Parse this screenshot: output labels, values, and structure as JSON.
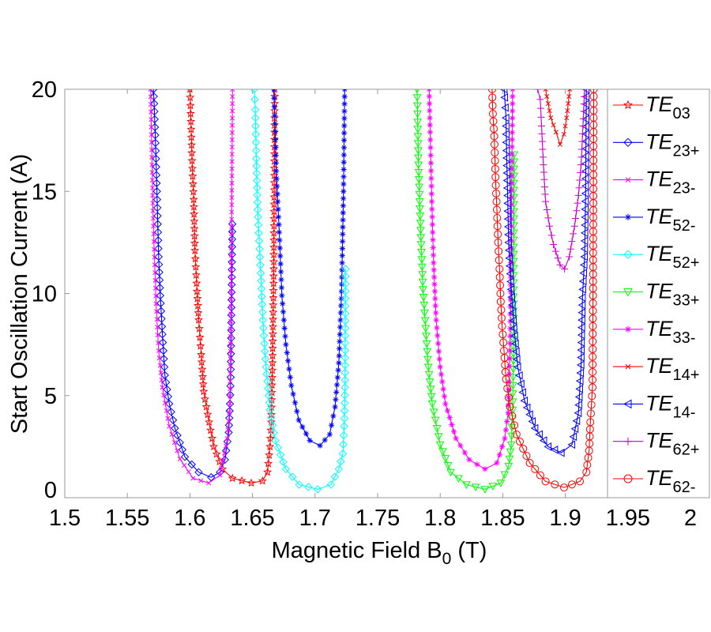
{
  "chart_data": {
    "type": "line",
    "title": "",
    "xlabel": {
      "main": "Magnetic Field B",
      "sub": "0",
      "unit": " (T)"
    },
    "ylabel": "Start Oscillation Current (A)",
    "xlim": [
      1.5,
      2.0
    ],
    "ylim": [
      0,
      20
    ],
    "xticks": [
      "1.5",
      "1.55",
      "1.6",
      "1.65",
      "1.7",
      "1.75",
      "1.8",
      "1.85",
      "1.9",
      "1.95",
      "2"
    ],
    "yticks": [
      "0",
      "5",
      "10",
      "15",
      "20"
    ],
    "grid": false,
    "legend_position": "right",
    "series": [
      {
        "name_main": "TE",
        "name_sub": "03",
        "color": "#ff0000",
        "marker": "star",
        "points": [
          [
            1.6,
            20
          ],
          [
            1.6006,
            18.8
          ],
          [
            1.6017,
            16.5
          ],
          [
            1.603,
            14.6
          ],
          [
            1.604,
            12.1
          ],
          [
            1.6057,
            10.1
          ],
          [
            1.607,
            8.7
          ],
          [
            1.609,
            7.0
          ],
          [
            1.611,
            5.2
          ],
          [
            1.6153,
            3.7
          ],
          [
            1.619,
            2.5
          ],
          [
            1.626,
            1.4
          ],
          [
            1.634,
            0.95
          ],
          [
            1.649,
            0.72
          ],
          [
            1.658,
            0.82
          ],
          [
            1.662,
            1.25
          ],
          [
            1.664,
            2.5
          ],
          [
            1.665,
            3.7
          ],
          [
            1.666,
            6.6
          ],
          [
            1.667,
            11.2
          ],
          [
            1.6678,
            20
          ]
        ]
      },
      {
        "name_main": "TE",
        "name_sub": "23+",
        "color": "#0000ff",
        "marker": "diamond",
        "points": [
          [
            1.5708,
            20
          ],
          [
            1.5714,
            19.3
          ],
          [
            1.5729,
            16.6
          ],
          [
            1.574,
            14.2
          ],
          [
            1.575,
            11.8
          ],
          [
            1.5763,
            9.9
          ],
          [
            1.578,
            8.0
          ],
          [
            1.58,
            6.0
          ],
          [
            1.5835,
            4.6
          ],
          [
            1.588,
            3.4
          ],
          [
            1.596,
            2.0
          ],
          [
            1.607,
            1.25
          ],
          [
            1.617,
            1.0
          ],
          [
            1.624,
            1.25
          ],
          [
            1.628,
            1.86
          ],
          [
            1.631,
            3.2
          ],
          [
            1.632,
            4.6
          ],
          [
            1.6326,
            5.9
          ],
          [
            1.633,
            8.2
          ],
          [
            1.6339,
            13.4
          ]
        ]
      },
      {
        "name_main": "TE",
        "name_sub": "23-",
        "color": "#ff00ff",
        "marker": "x",
        "points": [
          [
            1.5686,
            20
          ],
          [
            1.5697,
            16.3
          ],
          [
            1.5708,
            13.3
          ],
          [
            1.573,
            9.5
          ],
          [
            1.575,
            7.2
          ],
          [
            1.578,
            5.4
          ],
          [
            1.5835,
            3.5
          ],
          [
            1.592,
            1.9
          ],
          [
            1.6025,
            0.95
          ],
          [
            1.615,
            0.72
          ],
          [
            1.624,
            1.1
          ],
          [
            1.63,
            2.9
          ],
          [
            1.632,
            4.6
          ],
          [
            1.633,
            10.1
          ],
          [
            1.634,
            20
          ]
        ]
      },
      {
        "name_main": "TE",
        "name_sub": "52-",
        "color": "#0000ff",
        "marker": "asterisk",
        "points": [
          [
            1.667,
            20
          ],
          [
            1.6678,
            18.7
          ],
          [
            1.669,
            16.0
          ],
          [
            1.6714,
            13.0
          ],
          [
            1.6735,
            9.9
          ],
          [
            1.6767,
            7.5
          ],
          [
            1.681,
            5.5
          ],
          [
            1.687,
            3.8
          ],
          [
            1.6958,
            2.8
          ],
          [
            1.704,
            2.55
          ],
          [
            1.7117,
            3.1
          ],
          [
            1.716,
            4.45
          ],
          [
            1.719,
            6.6
          ],
          [
            1.7212,
            10.1
          ],
          [
            1.7227,
            15.0
          ],
          [
            1.7237,
            20
          ]
        ]
      },
      {
        "name_main": "TE",
        "name_sub": "52+",
        "color": "#00ffff",
        "marker": "diamond",
        "points": [
          [
            1.6513,
            20
          ],
          [
            1.6523,
            19.0
          ],
          [
            1.653,
            16.6
          ],
          [
            1.6544,
            13.75
          ],
          [
            1.6566,
            11.0
          ],
          [
            1.6583,
            8.7
          ],
          [
            1.6608,
            6.4
          ],
          [
            1.664,
            4.3
          ],
          [
            1.6682,
            2.8
          ],
          [
            1.6767,
            1.4
          ],
          [
            1.6873,
            0.64
          ],
          [
            1.702,
            0.41
          ],
          [
            1.7127,
            0.64
          ],
          [
            1.719,
            1.4
          ],
          [
            1.7222,
            2.16
          ],
          [
            1.7233,
            3.5
          ],
          [
            1.7239,
            5.4
          ],
          [
            1.7244,
            11.2
          ]
        ]
      },
      {
        "name_main": "TE",
        "name_sub": "33+",
        "color": "#00ff00",
        "marker": "triangle-down",
        "points": [
          [
            1.7815,
            20
          ],
          [
            1.782,
            18.4
          ],
          [
            1.7827,
            16.3
          ],
          [
            1.7836,
            14.5
          ],
          [
            1.7848,
            12.4
          ],
          [
            1.7863,
            10.2
          ],
          [
            1.7884,
            8.3
          ],
          [
            1.7905,
            6.4
          ],
          [
            1.7937,
            4.6
          ],
          [
            1.8,
            2.6
          ],
          [
            1.8084,
            1.25
          ],
          [
            1.821,
            0.64
          ],
          [
            1.8358,
            0.41
          ],
          [
            1.8484,
            0.72
          ],
          [
            1.8547,
            1.55
          ],
          [
            1.8568,
            2.6
          ],
          [
            1.8579,
            4.3
          ],
          [
            1.8585,
            6.7
          ],
          [
            1.859,
            16.8
          ]
        ]
      },
      {
        "name_main": "TE",
        "name_sub": "33-",
        "color": "#ff00ff",
        "marker": "asterisk",
        "points": [
          [
            1.7912,
            20
          ],
          [
            1.792,
            17.9
          ],
          [
            1.7933,
            14.5
          ],
          [
            1.7947,
            11.5
          ],
          [
            1.7968,
            8.7
          ],
          [
            1.8,
            6.4
          ],
          [
            1.8042,
            4.6
          ],
          [
            1.8126,
            2.9
          ],
          [
            1.8232,
            1.86
          ],
          [
            1.8358,
            1.4
          ],
          [
            1.8453,
            1.7
          ],
          [
            1.8516,
            2.9
          ],
          [
            1.8543,
            4.15
          ],
          [
            1.8558,
            7.2
          ],
          [
            1.8568,
            13.3
          ],
          [
            1.8579,
            20
          ]
        ]
      },
      {
        "name_main": "TE",
        "name_sub": "14+",
        "color": "#ff0000",
        "marker": "x",
        "points": [
          [
            1.8842,
            20
          ],
          [
            1.8884,
            18.6
          ],
          [
            1.8926,
            17.9
          ],
          [
            1.8958,
            17.3
          ],
          [
            1.8989,
            17.8
          ],
          [
            1.901,
            18.6
          ],
          [
            1.9036,
            20
          ]
        ]
      },
      {
        "name_main": "TE",
        "name_sub": "14-",
        "color": "#0000ff",
        "marker": "triangle-left",
        "points": [
          [
            1.8512,
            20
          ],
          [
            1.8516,
            19.6
          ],
          [
            1.8526,
            18.6
          ],
          [
            1.853,
            17.0
          ],
          [
            1.8539,
            14.8
          ],
          [
            1.8547,
            12.5
          ],
          [
            1.8568,
            10.2
          ],
          [
            1.859,
            8.3
          ],
          [
            1.862,
            6.4
          ],
          [
            1.8674,
            4.75
          ],
          [
            1.8758,
            3.4
          ],
          [
            1.8863,
            2.5
          ],
          [
            1.8968,
            2.2
          ],
          [
            1.9053,
            2.6
          ],
          [
            1.9105,
            4.15
          ],
          [
            1.9126,
            6.5
          ],
          [
            1.9137,
            9.8
          ],
          [
            1.9154,
            11.8
          ],
          [
            1.9162,
            14.9
          ],
          [
            1.9168,
            20
          ]
        ]
      },
      {
        "name_main": "TE",
        "name_sub": "62+",
        "color": "#cc00cc",
        "marker": "plus",
        "points": [
          [
            1.8779,
            20
          ],
          [
            1.88,
            19.5
          ],
          [
            1.881,
            18.2
          ],
          [
            1.8825,
            16.3
          ],
          [
            1.8842,
            14.5
          ],
          [
            1.8874,
            13.3
          ],
          [
            1.8905,
            12.4
          ],
          [
            1.8958,
            11.4
          ],
          [
            1.8994,
            11.2
          ],
          [
            1.9032,
            11.8
          ],
          [
            1.9074,
            13.3
          ],
          [
            1.9105,
            14.8
          ],
          [
            1.9126,
            16.3
          ],
          [
            1.9141,
            18.2
          ],
          [
            1.9154,
            20
          ]
        ]
      },
      {
        "name_main": "TE",
        "name_sub": "62-",
        "color": "#ff0000",
        "marker": "circle",
        "points": [
          [
            1.8415,
            20
          ],
          [
            1.8421,
            18.8
          ],
          [
            1.8432,
            17.7
          ],
          [
            1.8442,
            15.7
          ],
          [
            1.8453,
            14.1
          ],
          [
            1.8463,
            12.5
          ],
          [
            1.8474,
            11.2
          ],
          [
            1.8484,
            9.6
          ],
          [
            1.8495,
            8.4
          ],
          [
            1.851,
            7.2
          ],
          [
            1.8526,
            5.8
          ],
          [
            1.8558,
            4.45
          ],
          [
            1.861,
            3.1
          ],
          [
            1.8716,
            1.7
          ],
          [
            1.8842,
            0.8
          ],
          [
            1.899,
            0.5
          ],
          [
            1.9116,
            0.8
          ],
          [
            1.9168,
            1.25
          ],
          [
            1.919,
            2.3
          ],
          [
            1.92,
            3.7
          ],
          [
            1.9217,
            5.4
          ],
          [
            1.9221,
            9.9
          ],
          [
            1.9227,
            20
          ]
        ]
      }
    ]
  }
}
